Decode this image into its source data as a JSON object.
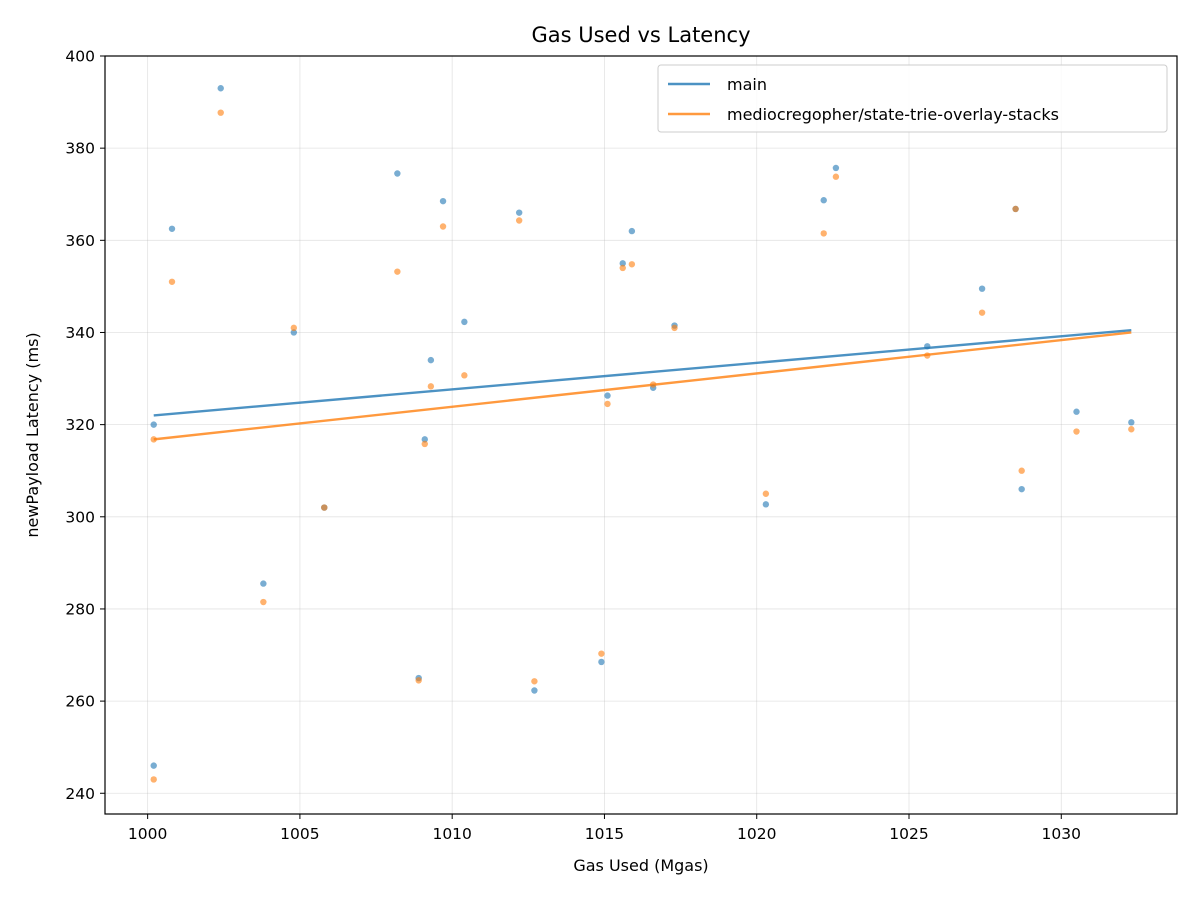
{
  "chart_data": {
    "type": "scatter",
    "title": "Gas Used vs Latency",
    "xlabel": "Gas Used (Mgas)",
    "ylabel": "newPayload Latency (ms)",
    "xlim": [
      998.6,
      1033.8
    ],
    "ylim": [
      235.5,
      400
    ],
    "x_ticks": [
      1000,
      1005,
      1010,
      1015,
      1020,
      1025,
      1030
    ],
    "y_ticks": [
      240,
      260,
      280,
      300,
      320,
      340,
      360,
      380,
      400
    ],
    "grid": true,
    "legend_position": "top-right",
    "x": [
      1000.2,
      1000.2,
      1000.8,
      1002.4,
      1003.8,
      1004.8,
      1005.8,
      1008.2,
      1008.9,
      1009.1,
      1009.3,
      1009.7,
      1010.4,
      1012.2,
      1012.7,
      1014.9,
      1015.1,
      1015.6,
      1015.9,
      1016.6,
      1017.3,
      1020.3,
      1022.2,
      1022.6,
      1025.6,
      1027.4,
      1028.5,
      1028.7,
      1030.5,
      1032.3
    ],
    "series": [
      {
        "name": "main",
        "color": "#1f77b4",
        "y": [
          246.0,
          320.0,
          362.5,
          393.0,
          285.5,
          340.0,
          302.0,
          374.5,
          265.0,
          316.8,
          334.0,
          368.5,
          342.3,
          366.0,
          262.3,
          268.5,
          326.3,
          355.0,
          362.0,
          328.0,
          341.5,
          302.7,
          368.7,
          375.7,
          337.0,
          349.5,
          366.8,
          306.0,
          322.8,
          320.5
        ],
        "trend": [
          322.0,
          340.5
        ]
      },
      {
        "name": "mediocregopher/state-trie-overlay-stacks",
        "color": "#ff7f0e",
        "y": [
          243.0,
          316.8,
          351.0,
          387.7,
          281.5,
          341.0,
          302.0,
          353.2,
          264.5,
          315.8,
          328.3,
          363.0,
          330.7,
          364.3,
          264.3,
          270.3,
          324.5,
          354.0,
          354.8,
          328.7,
          341.0,
          305.0,
          361.5,
          373.8,
          335.0,
          344.3,
          366.8,
          310.0,
          318.5,
          319.0
        ],
        "trend": [
          316.8,
          340.0
        ]
      }
    ]
  }
}
